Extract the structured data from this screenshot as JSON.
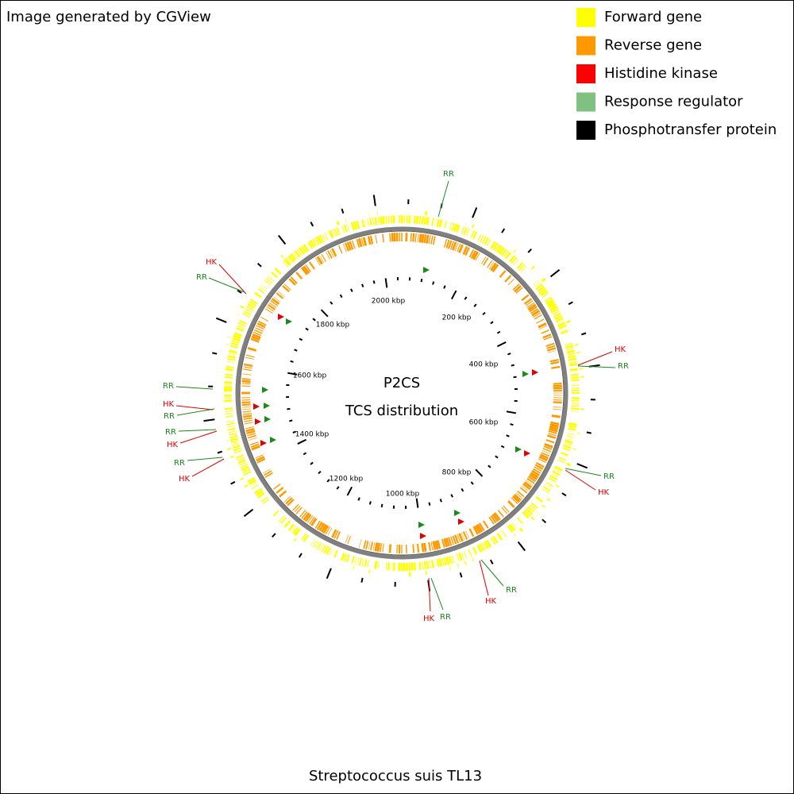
{
  "header": {
    "title": "Image generated by CGView"
  },
  "legend": [
    {
      "label": "Forward gene",
      "color": "#ffff00"
    },
    {
      "label": "Reverse gene",
      "color": "#ff9900"
    },
    {
      "label": "Histidine kinase",
      "color": "#ff0000"
    },
    {
      "label": "Response regulator",
      "color": "#80c080"
    },
    {
      "label": "Phosphotransfer protein",
      "color": "#000000"
    }
  ],
  "map": {
    "title": "P2CS",
    "subtitle": "TCS distribution",
    "position_labels": [
      "2000 kbp",
      "200 kbp",
      "400 kbp",
      "600 kbp",
      "800 kbp",
      "1000 kbp",
      "1200 kbp",
      "1400 kbp",
      "1600 kbp",
      "1800 kbp"
    ],
    "callouts": [
      {
        "label": "RR",
        "color": "#1a8a1a"
      },
      {
        "label": "HK",
        "color": "#e00000"
      },
      {
        "label": "RR",
        "color": "#1a8a1a"
      },
      {
        "label": "HK",
        "color": "#e00000"
      },
      {
        "label": "RR",
        "color": "#1a8a1a"
      },
      {
        "label": "RR",
        "color": "#1a8a1a"
      },
      {
        "label": "HK",
        "color": "#e00000"
      },
      {
        "label": "RR",
        "color": "#1a8a1a"
      },
      {
        "label": "RR",
        "color": "#1a8a1a"
      },
      {
        "label": "HK",
        "color": "#e00000"
      },
      {
        "label": "RR",
        "color": "#1a8a1a"
      },
      {
        "label": "HK",
        "color": "#e00000"
      },
      {
        "label": "RR",
        "color": "#1a8a1a"
      },
      {
        "label": "HK",
        "color": "#e00000"
      },
      {
        "label": "RR",
        "color": "#1a8a1a"
      },
      {
        "label": "HK",
        "color": "#e00000"
      },
      {
        "label": "HK",
        "color": "#e00000"
      },
      {
        "label": "RR",
        "color": "#1a8a1a"
      }
    ]
  },
  "footer": {
    "organism": "Streptococcus suis TL13"
  }
}
